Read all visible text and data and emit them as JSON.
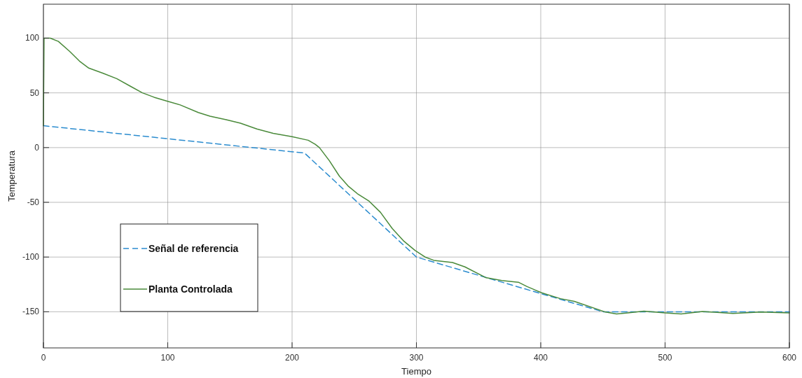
{
  "chart_data": {
    "type": "line",
    "xlabel": "Tiempo",
    "ylabel": "Temperatura",
    "xlim": [
      0,
      600
    ],
    "ylim": [
      -183,
      131
    ],
    "xticks": [
      0,
      100,
      200,
      300,
      400,
      500,
      600
    ],
    "yticks": [
      -150,
      -100,
      -50,
      0,
      50,
      100
    ],
    "grid": true,
    "legend": "bottom left",
    "series": [
      {
        "name": "Señal de referencia",
        "color": "#2b8ccf",
        "line_style": "dashed",
        "x": [
          0,
          210,
          300,
          450,
          600
        ],
        "values": [
          20,
          -5,
          -100,
          -150,
          -150
        ]
      },
      {
        "name": "Planta Controlada",
        "color": "#4a8a3a",
        "line_style": "solid",
        "x": [
          0,
          0.5,
          5.5,
          12,
          21,
          29,
          36.5,
          47.7,
          59,
          70,
          79.6,
          89,
          99,
          110,
          124.6,
          134,
          147,
          158.5,
          171.7,
          184.8,
          200,
          213,
          218.6,
          222,
          230,
          238,
          245,
          252.4,
          262,
          271,
          280.6,
          290,
          299,
          307,
          314,
          329,
          339,
          355.6,
          368.7,
          382,
          389,
          400.7,
          415.8,
          427,
          451.4,
          461,
          470,
          483,
          500,
          513,
          530,
          554.6,
          577,
          600
        ],
        "values": [
          20,
          100,
          100,
          97,
          88,
          79,
          72.6,
          68,
          63,
          56,
          50,
          46,
          42.6,
          39,
          32,
          28.7,
          25.5,
          22.3,
          17,
          13,
          10,
          6.7,
          3,
          0,
          -12,
          -26,
          -35,
          -42,
          -49,
          -59,
          -74,
          -85.6,
          -94,
          -100,
          -103,
          -105,
          -109,
          -118.7,
          -121.5,
          -123,
          -127,
          -132.6,
          -138,
          -140.5,
          -150,
          -152,
          -151,
          -149.5,
          -151,
          -152,
          -149.7,
          -151.5,
          -150.3,
          -151
        ]
      }
    ]
  }
}
